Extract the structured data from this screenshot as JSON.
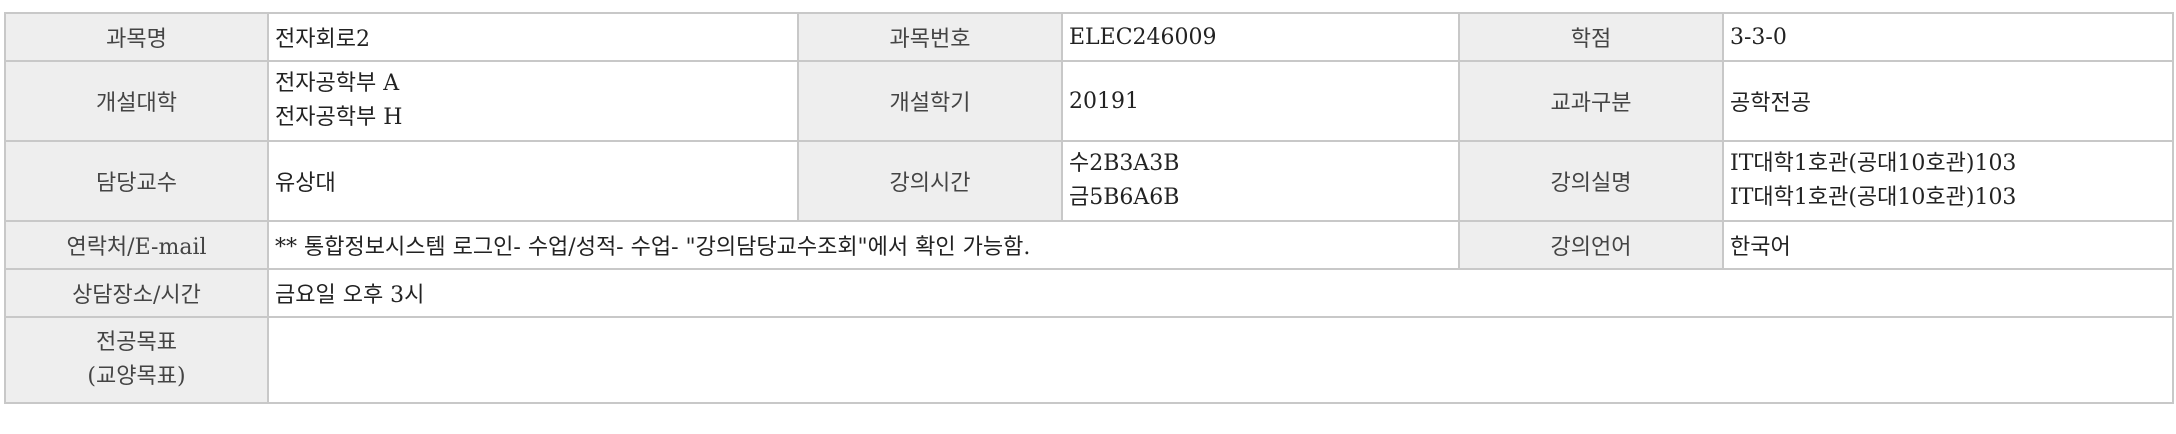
{
  "table": {
    "row1": {
      "course_name_label": "과목명",
      "course_name": "전자회로2",
      "course_no_label": "과목번호",
      "course_no": "ELEC246009",
      "credits_label": "학점",
      "credits": "3-3-0"
    },
    "row2": {
      "college_label": "개설대학",
      "college_1": "전자공학부 A",
      "college_2": "전자공학부 H",
      "semester_label": "개설학기",
      "semester": "20191",
      "category_label": "교과구분",
      "category": "공학전공"
    },
    "row3": {
      "professor_label": "담당교수",
      "professor": "유상대",
      "time_label": "강의시간",
      "time_1": "수2B3A3B",
      "time_2": "금5B6A6B",
      "room_label": "강의실명",
      "room_1": "IT대학1호관(공대10호관)103",
      "room_2": "IT대학1호관(공대10호관)103"
    },
    "row4": {
      "contact_label": "연락처/E-mail",
      "contact": "** 통합정보시스템 로그인- 수업/성적- 수업- \"강의담당교수조회\"에서 확인 가능함.",
      "language_label": "강의언어",
      "language": "한국어"
    },
    "row5": {
      "consult_label": "상담장소/시간",
      "consult": "금요일 오후 3시"
    },
    "row6": {
      "goal_label_1": "전공목표",
      "goal_label_2": "(교양목표)",
      "goal": ""
    }
  }
}
